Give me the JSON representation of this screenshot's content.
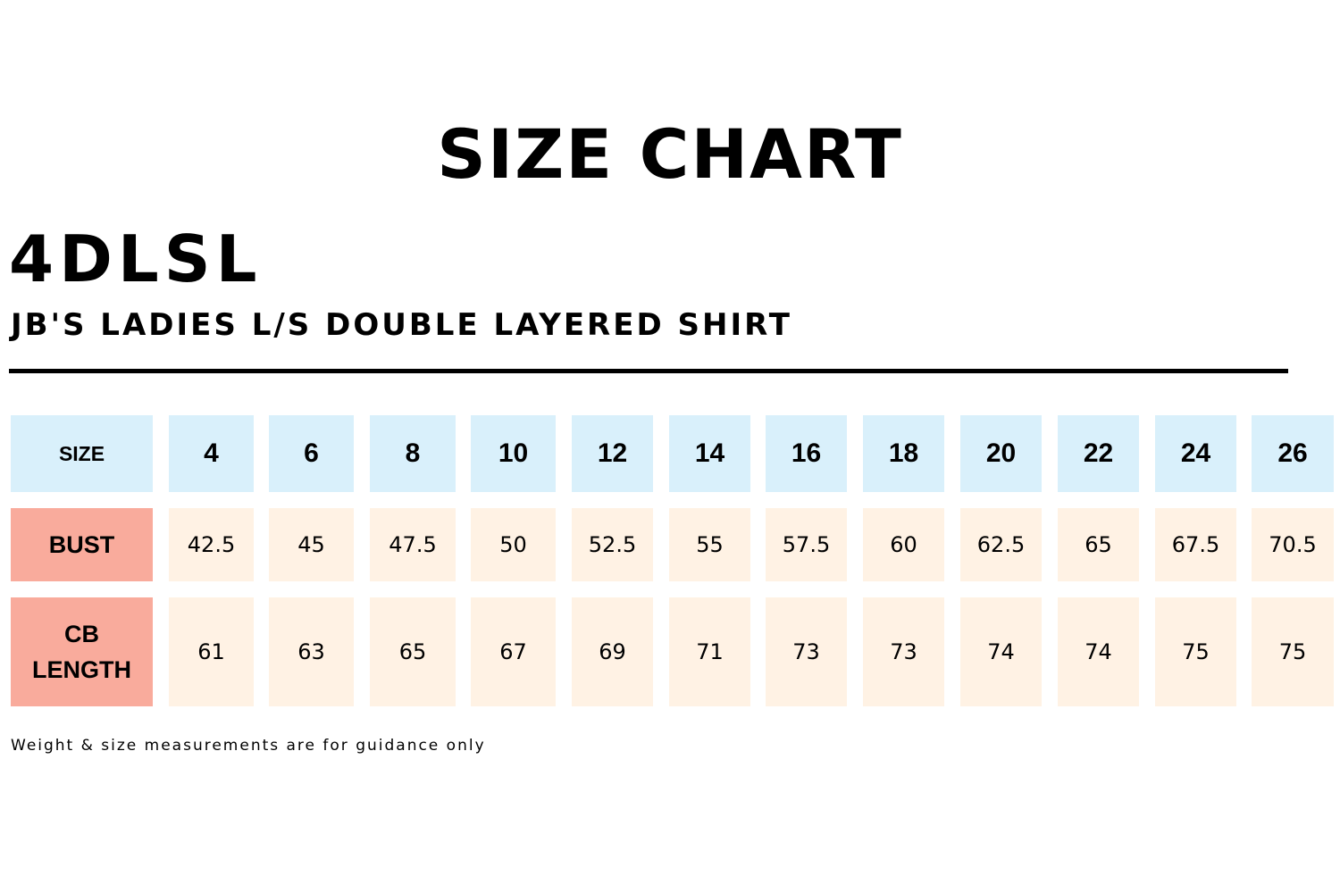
{
  "chart": {
    "title": "SIZE CHART",
    "product_code": "4DLSL",
    "product_name": "JB'S LADIES L/S DOUBLE LAYERED SHIRT",
    "footnote": "Weight & size measurements are for guidance only"
  },
  "table": {
    "header_label": "SIZE",
    "sizes": [
      "4",
      "6",
      "8",
      "10",
      "12",
      "14",
      "16",
      "18",
      "20",
      "22",
      "24",
      "26"
    ],
    "rows": [
      {
        "label": "BUST",
        "values": [
          "42.5",
          "45",
          "47.5",
          "50",
          "52.5",
          "55",
          "57.5",
          "60",
          "62.5",
          "65",
          "67.5",
          "70.5"
        ]
      },
      {
        "label": "CB\nLENGTH",
        "values": [
          "61",
          "63",
          "65",
          "67",
          "69",
          "71",
          "73",
          "73",
          "74",
          "74",
          "75",
          "75"
        ]
      }
    ]
  },
  "colors": {
    "header_bg": "#d9f0fb",
    "row_label_bg": "#f9ab9c",
    "value_bg": "#fff2e4"
  }
}
